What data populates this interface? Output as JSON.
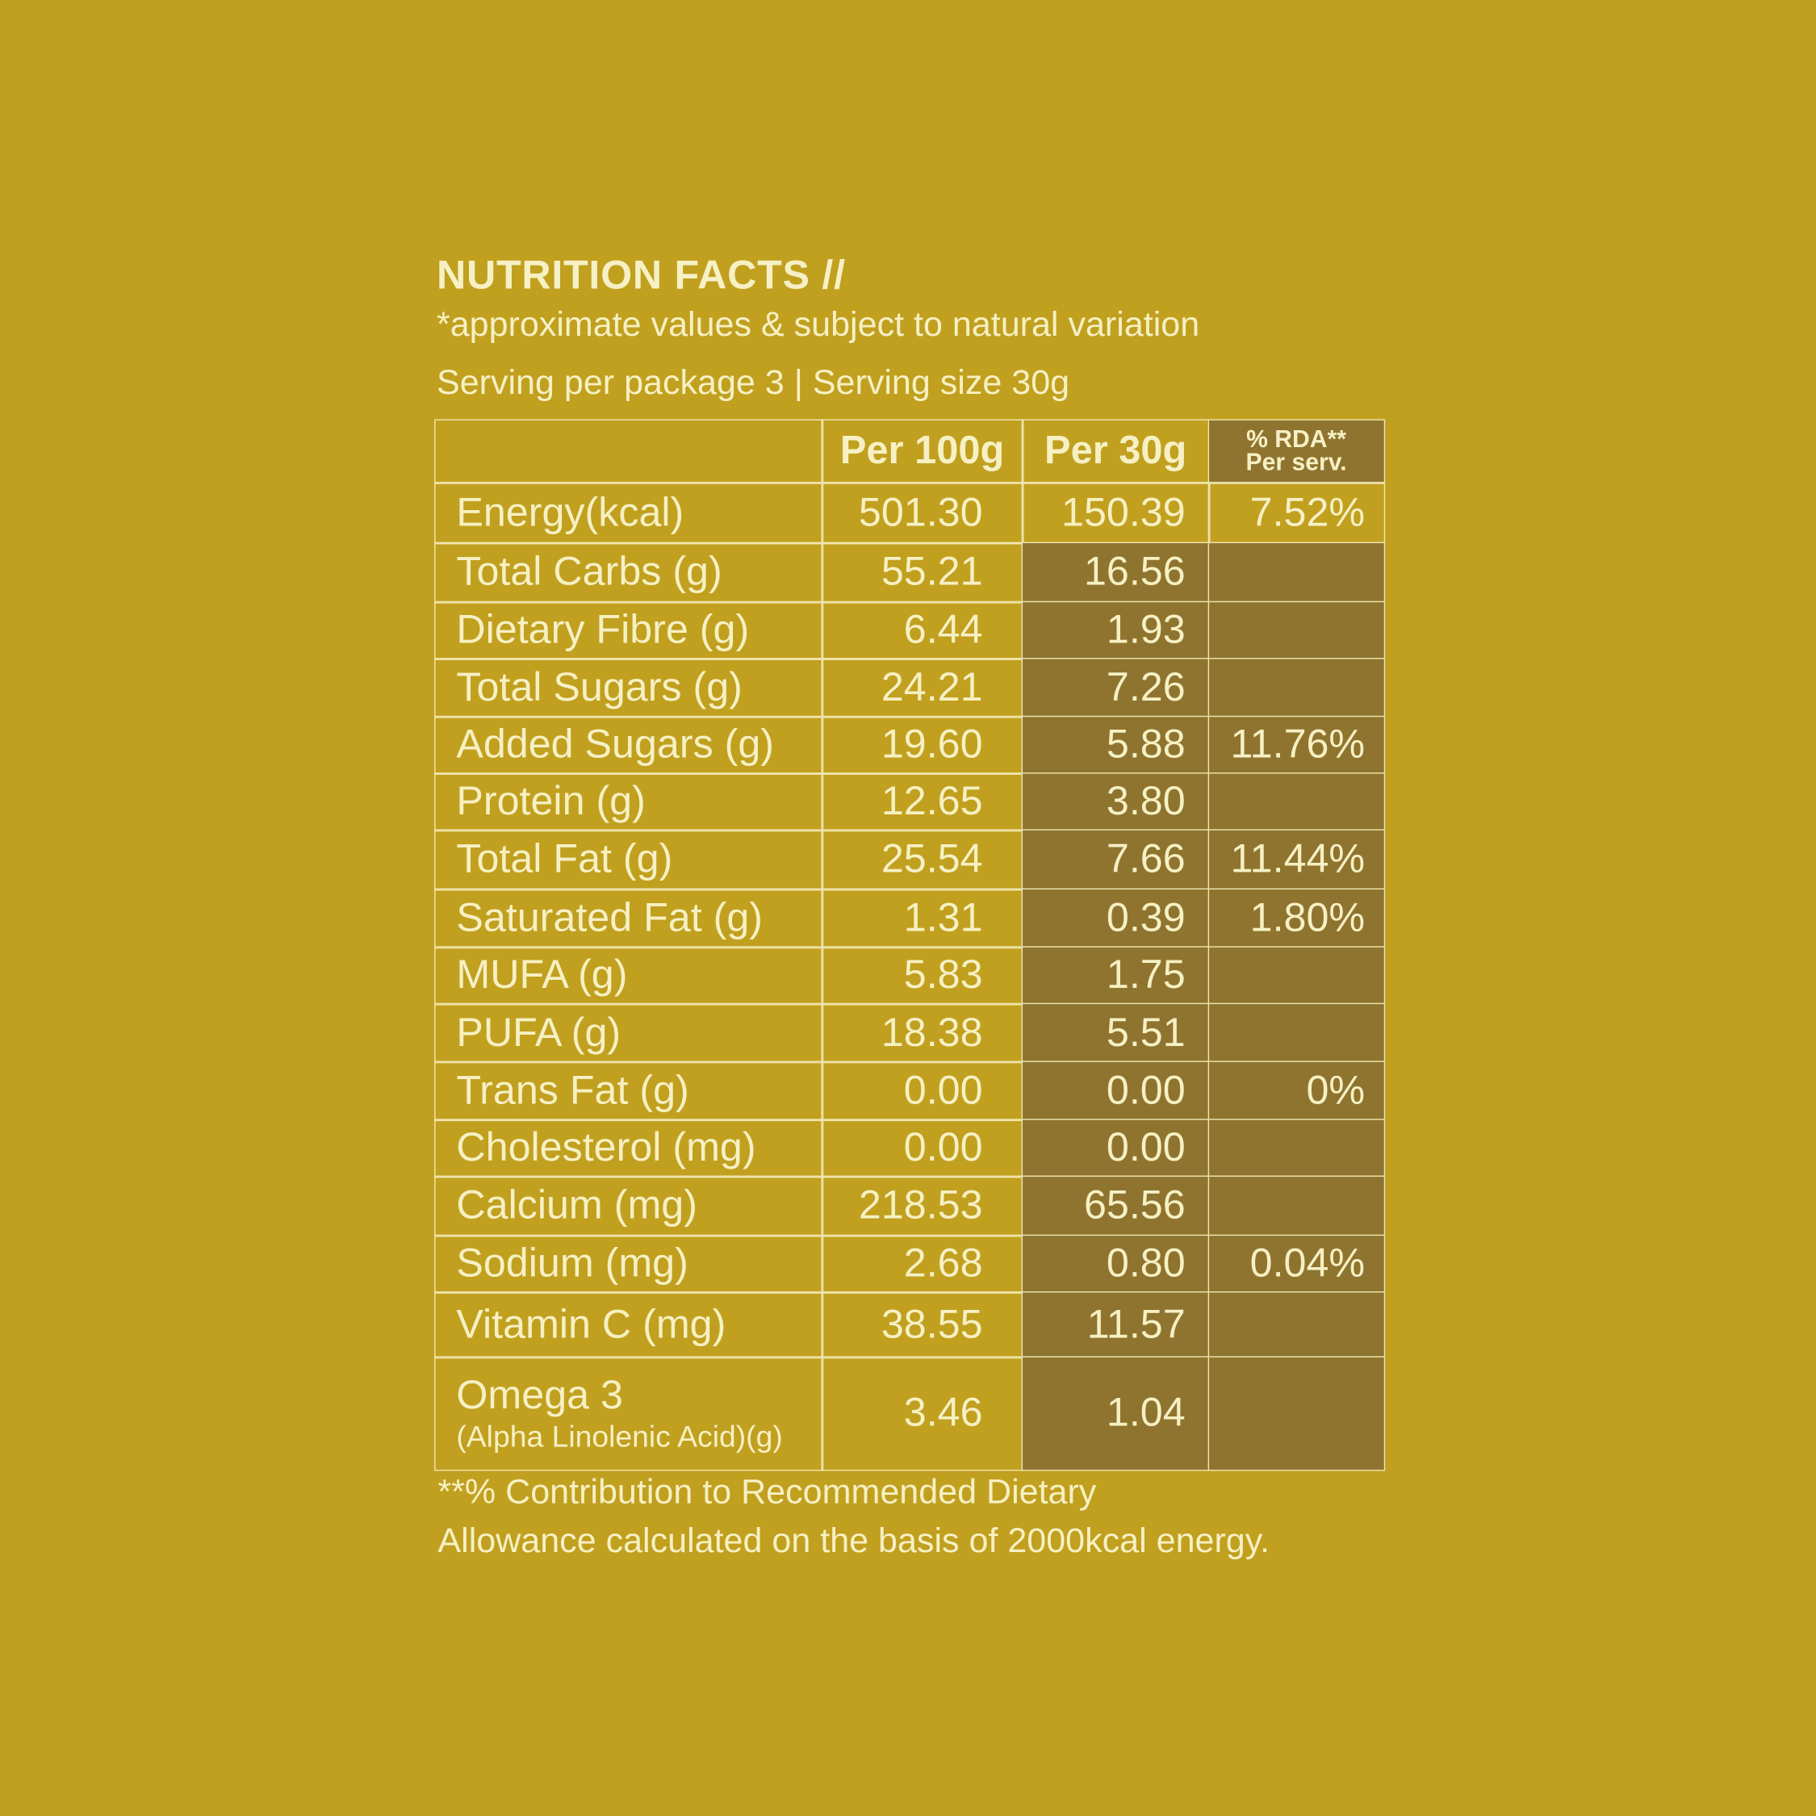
{
  "title": "NUTRITION FACTS //",
  "subtitle": "*approximate values & subject to natural variation",
  "serving": "Serving per package 3  |  Serving size 30g",
  "table": {
    "header": [
      "Per 100g",
      "Per 30g",
      [
        "% RDA**",
        "Per serv."
      ]
    ],
    "rows": [
      [
        "Energy(kcal)",
        "501.30",
        "150.39",
        "7.52%"
      ],
      [
        "Total Carbs (g)",
        "55.21",
        "16.56",
        null
      ],
      [
        "Dietary Fibre (g)",
        "6.44",
        "1.93",
        null
      ],
      [
        "Total Sugars (g)",
        "24.21",
        "7.26",
        null
      ],
      [
        "Added Sugars (g)",
        "19.60",
        "5.88",
        "11.76%"
      ],
      [
        "Protein (g)",
        "12.65",
        "3.80",
        null
      ],
      [
        "Total Fat (g)",
        "25.54",
        "7.66",
        "11.44%"
      ],
      [
        "Saturated Fat (g)",
        "1.31",
        "0.39",
        "1.80%"
      ],
      [
        "MUFA (g)",
        "5.83",
        "1.75",
        null
      ],
      [
        "PUFA (g)",
        "18.38",
        "5.51",
        null
      ],
      [
        "Trans Fat (g)",
        "0.00",
        "0.00",
        "0%"
      ],
      [
        "Cholesterol (mg)",
        "0.00",
        "0.00",
        null
      ],
      [
        "Calcium (mg)",
        "218.53",
        "65.56",
        null
      ],
      [
        "Sodium (mg)",
        "2.68",
        "0.80",
        "0.04%"
      ],
      [
        "Vitamin C (mg)",
        "38.55",
        "11.57",
        null
      ],
      [
        [
          "Omega 3",
          "(Alpha Linolenic Acid)(g)"
        ],
        "3.46",
        "1.04",
        null
      ]
    ]
  },
  "footnote": [
    "**% Contribution to Recommended Dietary",
    "Allowance calculated on the basis of 2000kcal energy."
  ]
}
